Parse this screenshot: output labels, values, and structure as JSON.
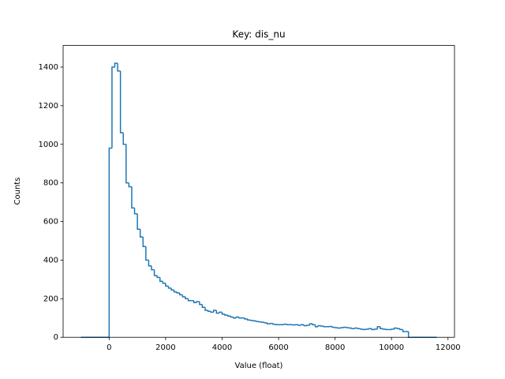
{
  "chart_data": {
    "type": "histogram",
    "title": "Key: dis_nu",
    "x_label": "Value (float)",
    "y_label": "Counts",
    "color": "#1f77b4",
    "bins": [
      -1000,
      -900,
      -800,
      -700,
      -600,
      -500,
      -400,
      -300,
      -200,
      -100,
      0,
      100,
      200,
      300,
      400,
      500,
      600,
      700,
      800,
      900,
      1000,
      1100,
      1200,
      1300,
      1400,
      1500,
      1600,
      1700,
      1800,
      1900,
      2000,
      2100,
      2200,
      2300,
      2400,
      2500,
      2600,
      2700,
      2800,
      2900,
      3000,
      3100,
      3200,
      3300,
      3400,
      3500,
      3600,
      3700,
      3800,
      3900,
      4000,
      4100,
      4200,
      4300,
      4400,
      4500,
      4600,
      4700,
      4800,
      4900,
      5000,
      5100,
      5200,
      5300,
      5400,
      5500,
      5600,
      5700,
      5800,
      5900,
      6000,
      6100,
      6200,
      6300,
      6400,
      6500,
      6600,
      6700,
      6800,
      6900,
      7000,
      7100,
      7200,
      7300,
      7400,
      7500,
      7600,
      7700,
      7800,
      7900,
      8000,
      8100,
      8200,
      8300,
      8400,
      8500,
      8600,
      8700,
      8800,
      8900,
      9000,
      9100,
      9200,
      9300,
      9400,
      9500,
      9600,
      9700,
      9800,
      9900,
      10000,
      10100,
      10200,
      10300,
      10400,
      10500,
      10600,
      10700,
      10800,
      10900,
      11000,
      11100,
      11200,
      11300,
      11400,
      11500,
      11600
    ],
    "values": [
      0,
      0,
      0,
      0,
      0,
      0,
      0,
      0,
      0,
      0,
      980,
      1400,
      1420,
      1380,
      1060,
      1000,
      800,
      780,
      670,
      640,
      560,
      520,
      470,
      400,
      370,
      350,
      320,
      310,
      290,
      280,
      265,
      255,
      245,
      235,
      230,
      220,
      210,
      200,
      190,
      190,
      180,
      185,
      170,
      155,
      140,
      135,
      130,
      140,
      125,
      130,
      120,
      115,
      110,
      105,
      100,
      105,
      100,
      100,
      95,
      90,
      88,
      85,
      82,
      80,
      78,
      75,
      70,
      72,
      68,
      66,
      65,
      66,
      68,
      65,
      66,
      64,
      65,
      62,
      65,
      60,
      62,
      70,
      65,
      55,
      60,
      58,
      55,
      55,
      56,
      52,
      50,
      48,
      50,
      52,
      50,
      48,
      45,
      48,
      45,
      42,
      40,
      42,
      45,
      40,
      42,
      55,
      45,
      42,
      40,
      40,
      42,
      48,
      45,
      40,
      30,
      30,
      0,
      0,
      0,
      0,
      0,
      0,
      0,
      0,
      0,
      0
    ],
    "xlim": [
      -1630,
      12230
    ],
    "ylim": [
      0,
      1512
    ],
    "xticks": [
      0,
      2000,
      4000,
      6000,
      8000,
      10000,
      12000
    ],
    "yticks": [
      0,
      200,
      400,
      600,
      800,
      1000,
      1200,
      1400
    ]
  }
}
